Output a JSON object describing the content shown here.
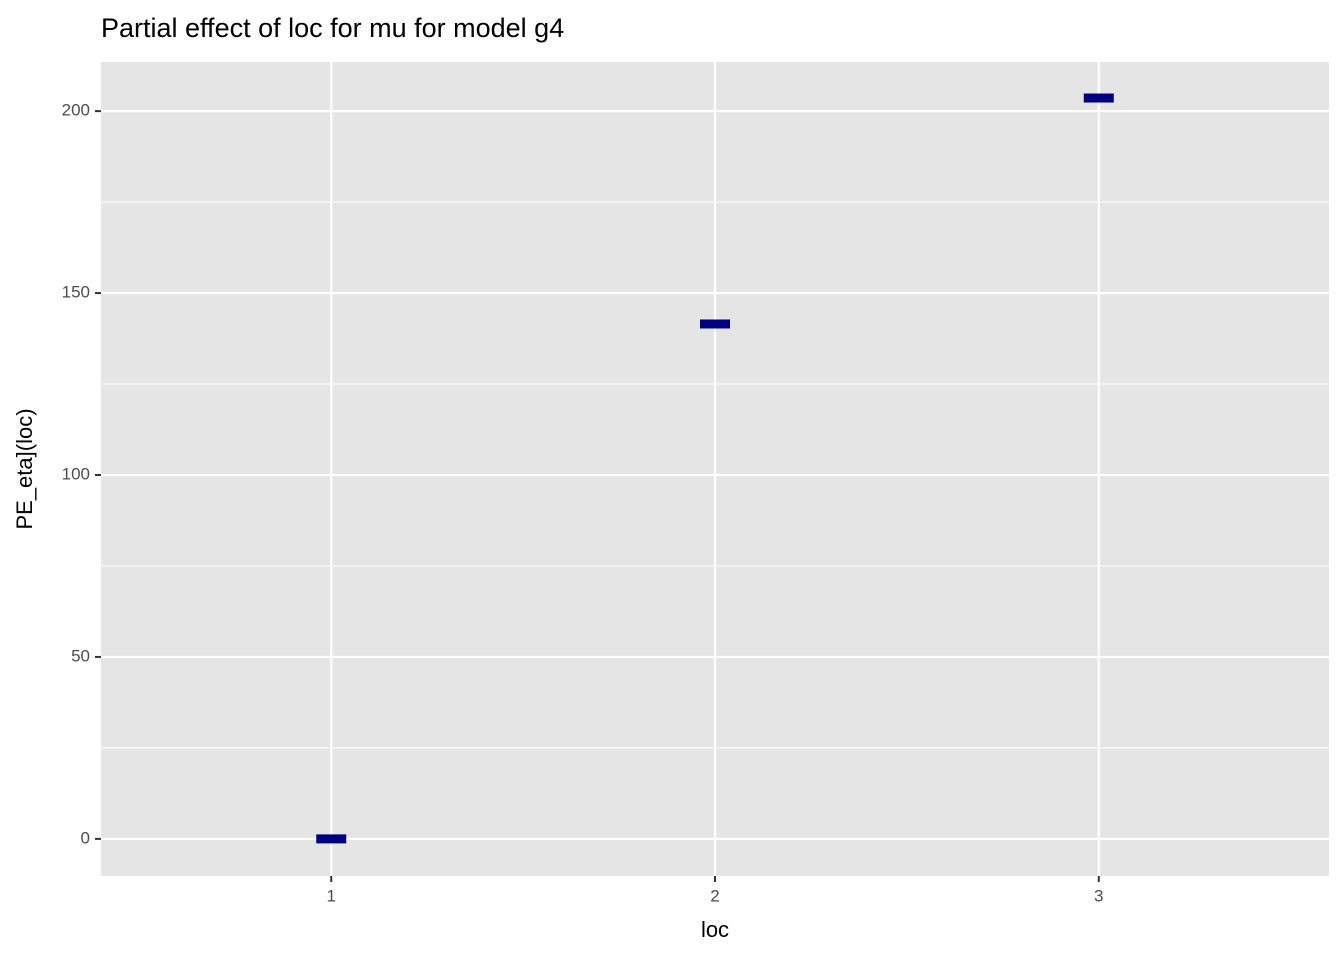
{
  "chart_data": {
    "type": "point",
    "title": "Partial effect of loc for mu for model g4",
    "x_label": "loc",
    "y_label": "PE_eta](loc)",
    "categories": [
      "1",
      "2",
      "3"
    ],
    "values": [
      0,
      141.5,
      203.6
    ],
    "color": "#000080",
    "ylim": [
      -10.2,
      213.5
    ],
    "yticks": [
      0,
      50,
      100,
      150,
      200
    ],
    "yminor": [
      25,
      75,
      125,
      175
    ],
    "grid": true
  }
}
